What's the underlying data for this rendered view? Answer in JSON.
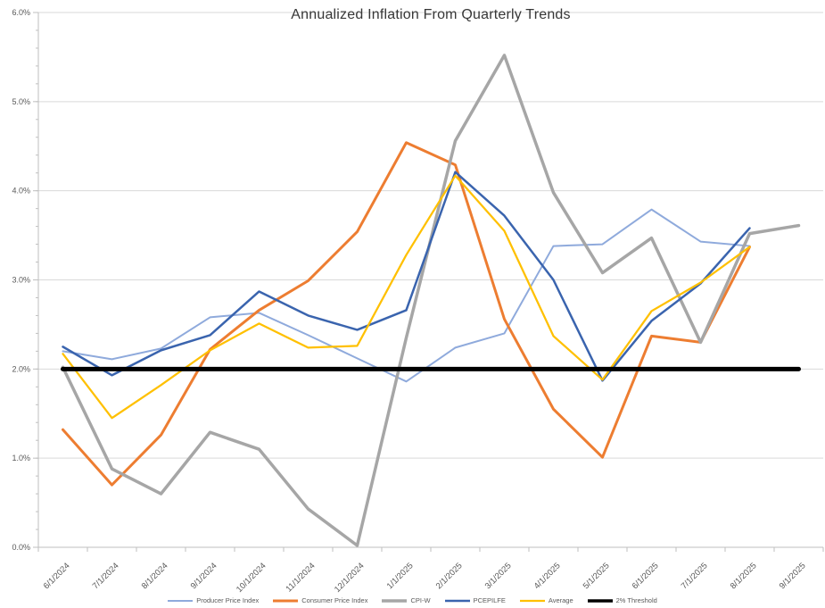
{
  "chart_data": {
    "type": "line",
    "title": "Annualized Inflation From Quarterly Trends",
    "categories": [
      "6/1/2024",
      "7/1/2024",
      "8/1/2024",
      "9/1/2024",
      "10/1/2024",
      "11/1/2024",
      "12/1/2024",
      "1/1/2025",
      "2/1/2025",
      "3/1/2025",
      "4/1/2025",
      "5/1/2025",
      "6/1/2025",
      "7/1/2025",
      "8/1/2025",
      "9/1/2025"
    ],
    "y_axis": {
      "min": 0,
      "max": 6,
      "major_step": 1,
      "minor_step": 0.2,
      "label_suffix": "%",
      "decimals": 1
    },
    "grid": true,
    "legend_position": "bottom",
    "series": [
      {
        "name": "Producer Price Index",
        "color": "#8FAADC",
        "width": 2,
        "values": [
          2.2,
          2.11,
          2.23,
          2.58,
          2.63,
          2.38,
          2.12,
          1.86,
          2.24,
          2.4,
          3.38,
          3.4,
          3.79,
          3.43,
          3.38,
          null
        ]
      },
      {
        "name": "Consumer Price Index",
        "color": "#ED7D31",
        "width": 3,
        "values": [
          1.32,
          0.7,
          1.26,
          2.22,
          2.66,
          2.99,
          3.54,
          4.54,
          4.29,
          2.56,
          1.55,
          1.01,
          2.37,
          2.3,
          3.37,
          null
        ]
      },
      {
        "name": "CPI-W",
        "color": "#A6A6A6",
        "width": 3.5,
        "values": [
          2.02,
          0.88,
          0.6,
          1.29,
          1.1,
          0.43,
          0.02,
          2.35,
          4.56,
          5.52,
          3.98,
          3.08,
          3.47,
          2.3,
          3.52,
          3.61
        ]
      },
      {
        "name": "PCEPILFE",
        "color": "#3A64AE",
        "width": 2.5,
        "values": [
          2.25,
          1.93,
          2.21,
          2.38,
          2.87,
          2.6,
          2.44,
          2.66,
          4.21,
          3.72,
          3.0,
          1.87,
          2.54,
          2.96,
          3.58,
          null
        ]
      },
      {
        "name": "Average",
        "color": "#FFC000",
        "width": 2.25,
        "values": [
          2.17,
          1.45,
          1.82,
          2.21,
          2.51,
          2.24,
          2.26,
          3.28,
          4.17,
          3.55,
          2.37,
          1.88,
          2.65,
          2.97,
          3.37,
          null
        ]
      },
      {
        "name": "2% Threshold",
        "color": "#000000",
        "width": 5,
        "values": [
          2,
          2,
          2,
          2,
          2,
          2,
          2,
          2,
          2,
          2,
          2,
          2,
          2,
          2,
          2,
          2
        ]
      }
    ],
    "colors": {
      "gridline": "#D9D9D9",
      "axis": "#BFBFBF",
      "tick_label": "#595959",
      "title": "#373737"
    }
  }
}
